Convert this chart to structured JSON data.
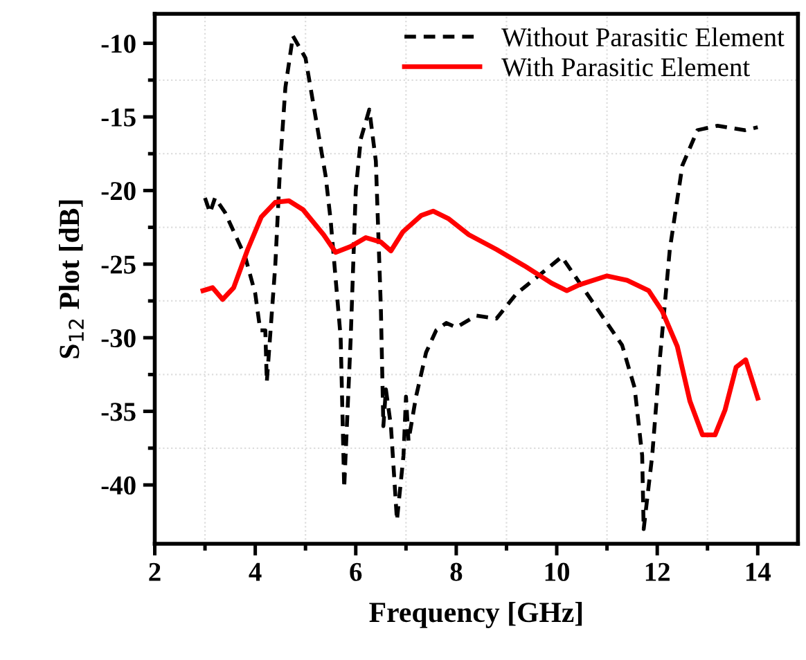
{
  "chart_data": {
    "type": "line",
    "xlabel": "Frequency [GHz]",
    "ylabel": "S$_{12}$ Plot [dB]",
    "xlim": [
      2,
      14.8
    ],
    "ylim": [
      -44,
      -8
    ],
    "xticks": [
      2,
      4,
      6,
      8,
      10,
      12,
      14
    ],
    "yticks": [
      -10,
      -15,
      -20,
      -25,
      -30,
      -35,
      -40
    ],
    "grid": true,
    "legend": "top right",
    "series": [
      {
        "name": "Without Parasitic Element",
        "color": "#000000",
        "line_style": "dashed",
        "x": [
          3.0,
          3.1,
          3.2,
          3.4,
          3.6,
          3.8,
          4.0,
          4.1,
          4.2,
          4.23,
          4.4,
          4.5,
          4.6,
          4.75,
          5.0,
          5.2,
          5.4,
          5.5,
          5.7,
          5.77,
          5.9,
          6.0,
          6.1,
          6.27,
          6.4,
          6.5,
          6.55,
          6.6,
          6.7,
          6.82,
          6.95,
          7.0,
          7.05,
          7.2,
          7.4,
          7.6,
          7.8,
          8.0,
          8.4,
          8.8,
          9.2,
          9.6,
          10.1,
          10.7,
          11.3,
          11.55,
          11.7,
          11.73,
          11.9,
          12.05,
          12.25,
          12.5,
          12.8,
          13.2,
          13.75,
          14.0
        ],
        "values": [
          -20.5,
          -21.5,
          -20.5,
          -21.5,
          -23,
          -24.5,
          -27,
          -29.5,
          -29.5,
          -33,
          -25,
          -18,
          -13,
          -9.5,
          -11,
          -15,
          -19,
          -22,
          -30,
          -40.2,
          -30,
          -20,
          -16.5,
          -14.5,
          -18,
          -28,
          -36,
          -33.5,
          -36,
          -42.4,
          -38,
          -34,
          -37,
          -34,
          -31,
          -29.5,
          -29,
          -29.3,
          -28.5,
          -28.7,
          -27,
          -25.9,
          -24.5,
          -27.5,
          -30.5,
          -33.4,
          -38,
          -43,
          -38,
          -31.5,
          -24,
          -18.3,
          -15.9,
          -15.6,
          -15.9,
          -15.7
        ]
      },
      {
        "name": "With Parasitic Element",
        "color": "#ff0000",
        "line_style": "solid",
        "x": [
          2.96,
          3.15,
          3.35,
          3.57,
          3.85,
          4.12,
          4.4,
          4.67,
          4.95,
          5.36,
          5.6,
          5.9,
          6.2,
          6.5,
          6.7,
          6.94,
          7.3,
          7.54,
          7.84,
          8.25,
          8.8,
          9.35,
          9.9,
          10.2,
          10.45,
          11.0,
          11.4,
          11.83,
          12.1,
          12.4,
          12.65,
          12.9,
          13.15,
          13.35,
          13.57,
          13.76,
          14.0
        ],
        "values": [
          -26.8,
          -26.6,
          -27.4,
          -26.6,
          -24,
          -21.8,
          -20.8,
          -20.7,
          -21.3,
          -23,
          -24.2,
          -23.8,
          -23.2,
          -23.5,
          -24.1,
          -22.8,
          -21.7,
          -21.4,
          -21.9,
          -23,
          -24,
          -25.1,
          -26.3,
          -26.8,
          -26.4,
          -25.8,
          -26.1,
          -26.8,
          -28.2,
          -30.6,
          -34.3,
          -36.6,
          -36.6,
          -34.9,
          -32,
          -31.5,
          -34.1
        ]
      }
    ]
  }
}
